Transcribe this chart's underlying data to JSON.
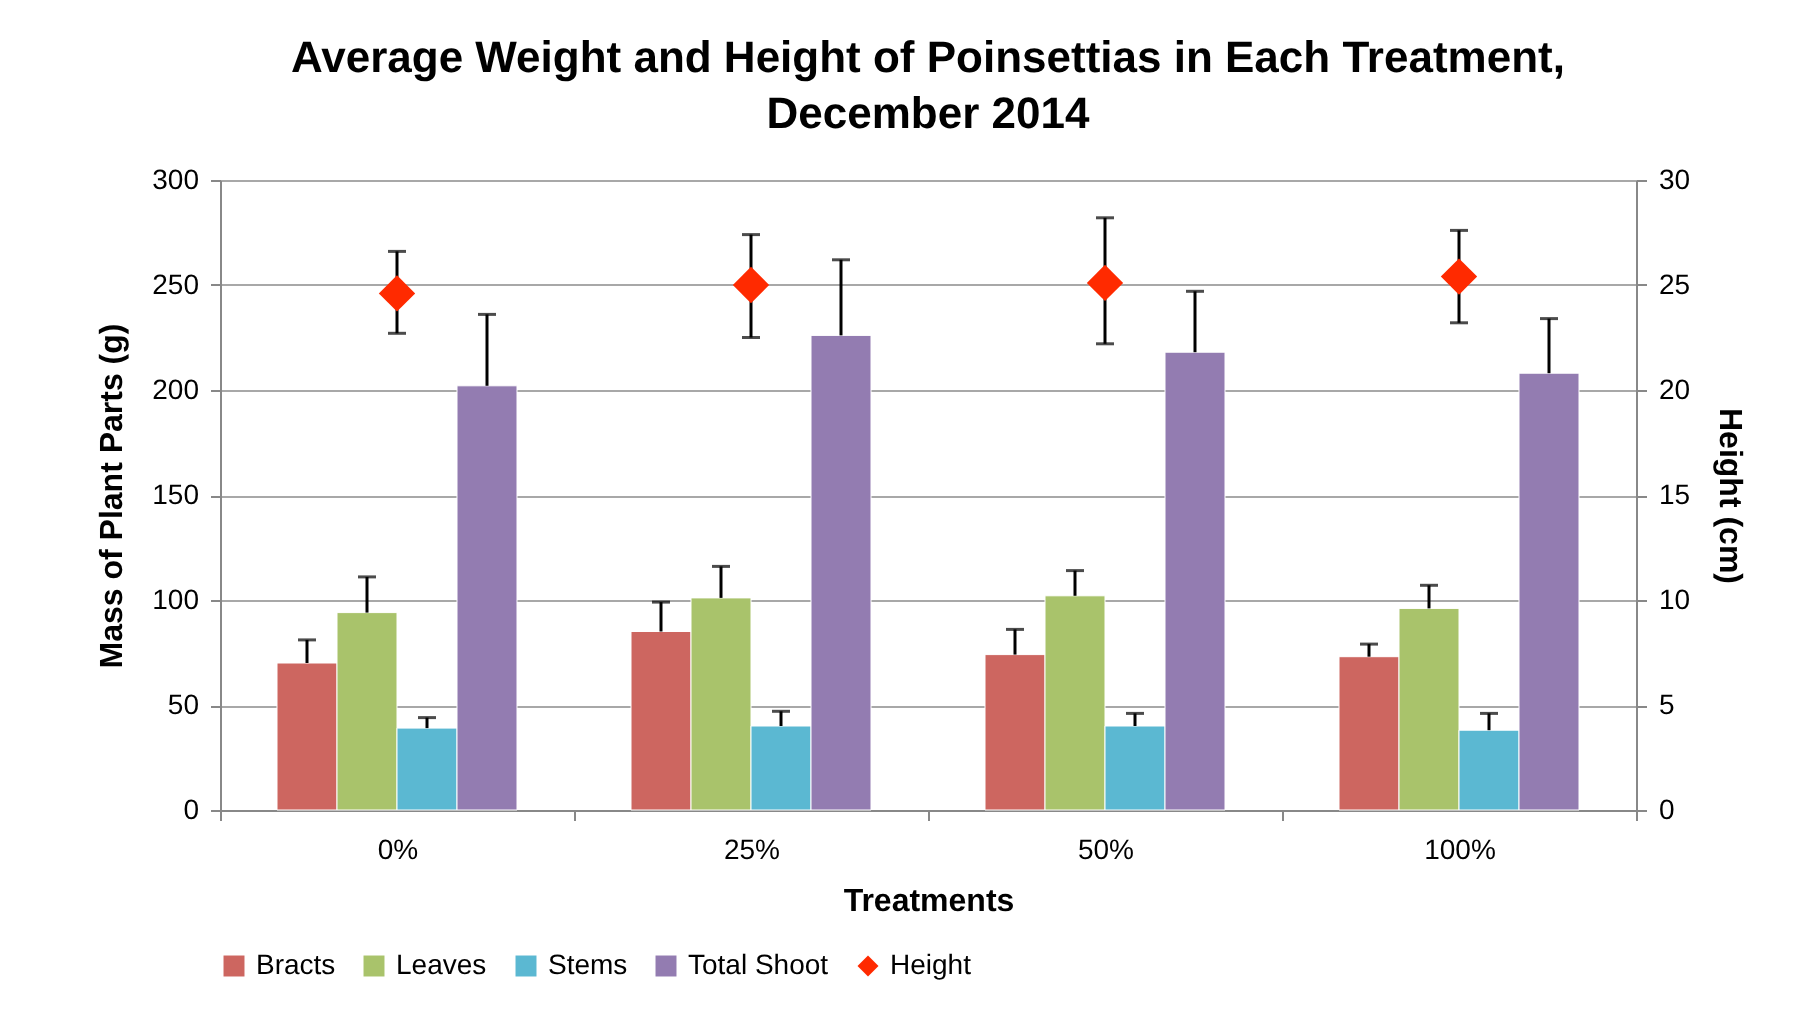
{
  "chart_data": {
    "type": "bar",
    "title": "Average Weight and Height of Poinsettias in Each Treatment, December 2014",
    "xlabel": "Treatments",
    "ylabel": "Mass of Plant Parts (g)",
    "y2label": "Height (cm)",
    "categories": [
      "0%",
      "25%",
      "50%",
      "100%"
    ],
    "series": [
      {
        "name": "Bracts",
        "color": "#cd6660",
        "values": [
          70,
          85,
          74,
          73
        ],
        "errors": [
          [
            70,
            81
          ],
          [
            85,
            99
          ],
          [
            74,
            86
          ],
          [
            73,
            79
          ]
        ]
      },
      {
        "name": "Leaves",
        "color": "#a9c36b",
        "values": [
          94,
          101,
          102,
          96
        ],
        "errors": [
          [
            94,
            111
          ],
          [
            101,
            116
          ],
          [
            102,
            114
          ],
          [
            96,
            107
          ]
        ]
      },
      {
        "name": "Stems",
        "color": "#5bb8d2",
        "values": [
          39,
          40,
          40,
          38
        ],
        "errors": [
          [
            39,
            44
          ],
          [
            40,
            47
          ],
          [
            40,
            46
          ],
          [
            38,
            46
          ]
        ]
      },
      {
        "name": "Total Shoot",
        "color": "#937cb1",
        "values": [
          202,
          226,
          218,
          208
        ],
        "errors": [
          [
            202,
            236
          ],
          [
            226,
            262
          ],
          [
            218,
            247
          ],
          [
            208,
            234
          ]
        ]
      },
      {
        "name": "Height",
        "type": "scatter",
        "axis": "y2",
        "marker": "diamond",
        "color": "#ff2a00",
        "values": [
          24.6,
          25.0,
          25.1,
          25.4
        ],
        "errors": [
          [
            22.7,
            26.6
          ],
          [
            22.5,
            27.4
          ],
          [
            22.2,
            28.2
          ],
          [
            23.2,
            27.6
          ]
        ]
      }
    ],
    "ylim": [
      0,
      300
    ],
    "yticks": [
      0,
      50,
      100,
      150,
      200,
      250,
      300
    ],
    "y2lim": [
      0,
      30
    ],
    "y2ticks": [
      0,
      5,
      10,
      15,
      20,
      25,
      30
    ],
    "grid": "y",
    "legend": "bottom"
  }
}
